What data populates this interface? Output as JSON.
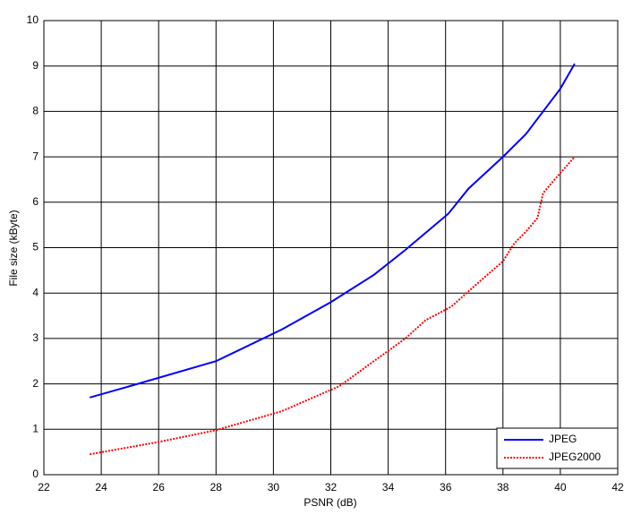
{
  "chart_data": {
    "type": "line",
    "x_label": "PSNR (dB)",
    "y_label": "File size (kByte)",
    "xlim": [
      22,
      42
    ],
    "xticks": [
      22,
      24,
      26,
      28,
      30,
      32,
      34,
      36,
      38,
      40,
      42
    ],
    "ylim": [
      0,
      10
    ],
    "yticks": [
      0,
      1,
      2,
      3,
      4,
      5,
      6,
      7,
      8,
      9,
      10
    ],
    "grid": true,
    "legend_position": "lower right",
    "series": [
      {
        "name": "JPEG",
        "color": "#0000ff",
        "line_style": "solid",
        "x": [
          23.6,
          25,
          28,
          30.3,
          32,
          33.5,
          34.6,
          36.1,
          36.8,
          38,
          38.8,
          40,
          40.5
        ],
        "values": [
          1.7,
          1.95,
          2.5,
          3.2,
          3.8,
          4.4,
          4.95,
          5.75,
          6.3,
          7.0,
          7.5,
          8.5,
          9.05
        ]
      },
      {
        "name": "JPEG2000",
        "color": "#ff0000",
        "line_style": "dotted",
        "x": [
          23.6,
          26,
          28,
          30.3,
          32.3,
          33.5,
          34.6,
          35.3,
          36.2,
          37,
          38,
          38.4,
          38.8,
          39.2,
          39.4,
          39.8,
          40.5
        ],
        "values": [
          0.45,
          0.72,
          0.98,
          1.4,
          1.95,
          2.5,
          3.0,
          3.4,
          3.7,
          4.15,
          4.7,
          5.1,
          5.35,
          5.65,
          6.2,
          6.5,
          7.0
        ]
      }
    ]
  }
}
